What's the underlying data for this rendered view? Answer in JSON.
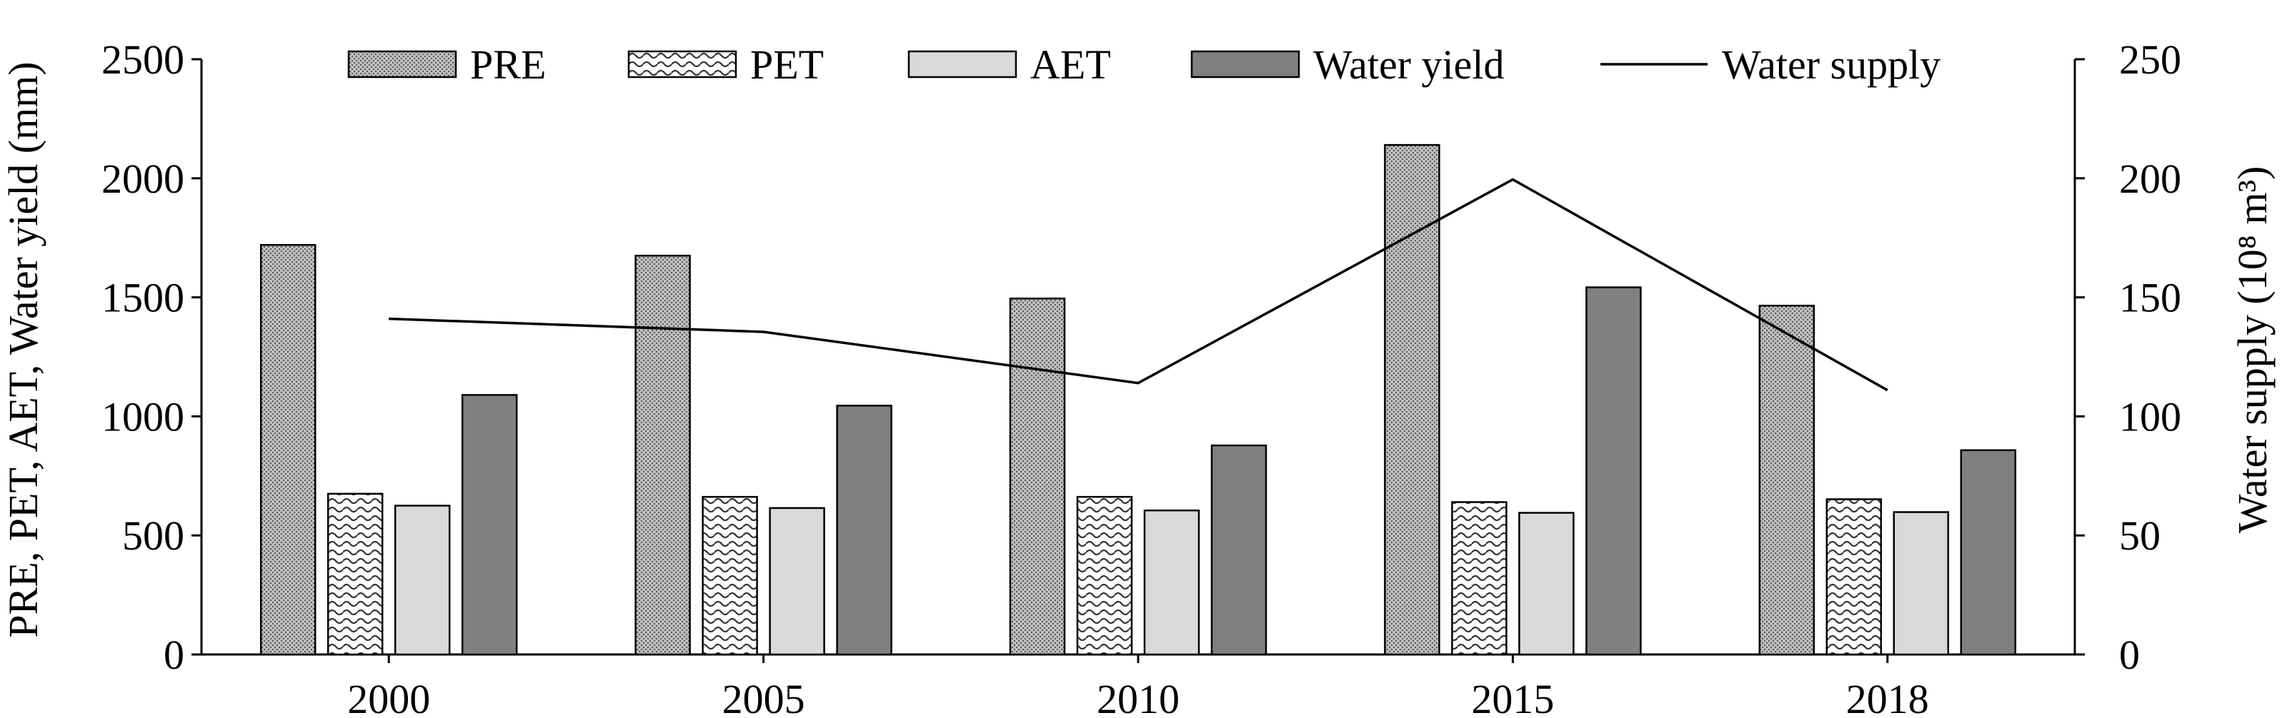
{
  "chart_data": {
    "type": "bar",
    "categories": [
      "2000",
      "2005",
      "2010",
      "2015",
      "2018"
    ],
    "series": [
      {
        "name": "PRE",
        "axis": "left",
        "kind": "bar",
        "pattern": "dots-dense",
        "values": [
          1720,
          1675,
          1495,
          2140,
          1465
        ]
      },
      {
        "name": "PET",
        "axis": "left",
        "kind": "bar",
        "pattern": "waves",
        "values": [
          675,
          662,
          662,
          640,
          652
        ]
      },
      {
        "name": "AET",
        "axis": "left",
        "kind": "bar",
        "pattern": "light-gray",
        "values": [
          625,
          615,
          605,
          595,
          598
        ]
      },
      {
        "name": "Water yield",
        "axis": "left",
        "kind": "bar",
        "pattern": "dark-gray",
        "values": [
          1090,
          1045,
          878,
          1542,
          858
        ]
      },
      {
        "name": "Water supply",
        "axis": "right",
        "kind": "line",
        "values": [
          141,
          135.5,
          114,
          199.5,
          111
        ]
      }
    ],
    "ylabel": "PRE, PET, AET, Water yield (mm)",
    "ylabel_right": "Water supply (10⁸ m³)",
    "ylim": [
      0,
      2500
    ],
    "ylim_right": [
      0,
      250
    ],
    "yticks": [
      "0",
      "500",
      "1000",
      "1500",
      "2000",
      "2500"
    ],
    "yticks_right": [
      "0",
      "50",
      "100",
      "150",
      "200",
      "250"
    ],
    "legend_position": "top",
    "grid": false,
    "colors": {
      "pre_fill": "#c8c8c8",
      "pet_fill": "#ffffff",
      "aet_fill": "#d9d9d9",
      "yield_fill": "#808080",
      "line": "#000000"
    }
  }
}
